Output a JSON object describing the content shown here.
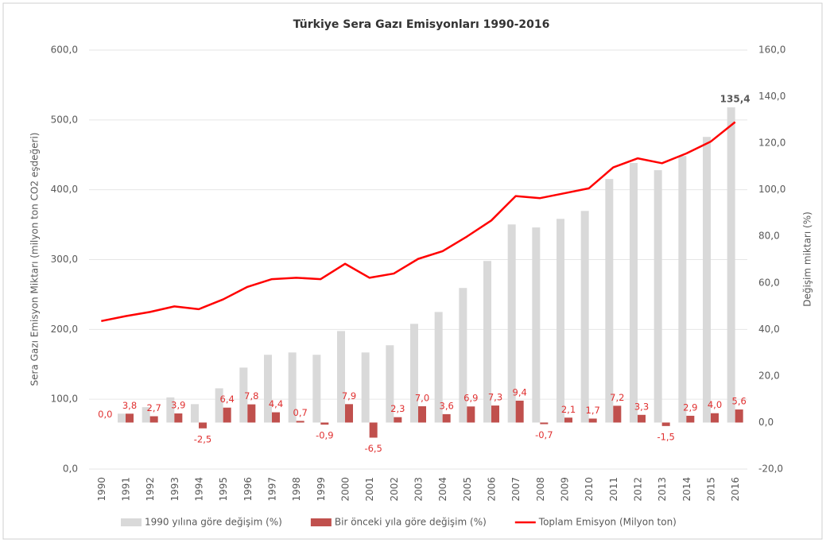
{
  "chart_data": {
    "type": "bar",
    "title": "Türkiye Sera Gazı Emisyonları 1990-2016",
    "y_label": "Sera Gazı Emisyon Miktarı (milyon ton CO2 eşdeğeri)",
    "y2_label": "Değişim miktarı (%)",
    "categories": [
      "1990",
      "1991",
      "1992",
      "1993",
      "1994",
      "1995",
      "1996",
      "1997",
      "1998",
      "1999",
      "2000",
      "2001",
      "2002",
      "2003",
      "2004",
      "2005",
      "2006",
      "2007",
      "2008",
      "2009",
      "2010",
      "2011",
      "2012",
      "2013",
      "2014",
      "2015",
      "2016"
    ],
    "ylim": [
      0,
      600
    ],
    "yticks": [
      {
        "value": 0,
        "label": "0,0"
      },
      {
        "value": 100,
        "label": "100,0"
      },
      {
        "value": 200,
        "label": "200,0"
      },
      {
        "value": 300,
        "label": "300,0"
      },
      {
        "value": 400,
        "label": "400,0"
      },
      {
        "value": 500,
        "label": "500,0"
      },
      {
        "value": 600,
        "label": "600,0"
      }
    ],
    "y2lim": [
      -20,
      160
    ],
    "y2ticks": [
      {
        "value": -20,
        "label": "-20,0"
      },
      {
        "value": 0,
        "label": "0,0"
      },
      {
        "value": 20,
        "label": "20,0"
      },
      {
        "value": 40,
        "label": "40,0"
      },
      {
        "value": 60,
        "label": "60,0"
      },
      {
        "value": 80,
        "label": "80,0"
      },
      {
        "value": 100,
        "label": "100,0"
      },
      {
        "value": 120,
        "label": "120,0"
      },
      {
        "value": 140,
        "label": "140,0"
      },
      {
        "value": 160,
        "label": "160,0"
      }
    ],
    "grid": true,
    "legend": "bottom",
    "series": [
      {
        "name": "1990 yılına göre değişim (%)",
        "type": "bar",
        "axis": "y2",
        "color": "#d9d9d9",
        "values": [
          0,
          3.8,
          6.6,
          10.8,
          7.9,
          14.7,
          23.6,
          29.1,
          30.1,
          29.1,
          39.3,
          30.1,
          33.2,
          42.4,
          47.5,
          57.8,
          69.4,
          85.1,
          83.8,
          87.5,
          90.9,
          104.6,
          111.5,
          108.4,
          114.5,
          122.7,
          135.4
        ],
        "value_labels": [
          null,
          null,
          null,
          null,
          null,
          null,
          null,
          null,
          null,
          null,
          null,
          null,
          null,
          null,
          null,
          null,
          null,
          null,
          null,
          null,
          null,
          null,
          null,
          null,
          null,
          null,
          "135,4"
        ]
      },
      {
        "name": "Bir önceki yıla göre değişim (%)",
        "type": "bar",
        "axis": "y2",
        "color": "#c0504d",
        "values": [
          0,
          3.8,
          2.7,
          3.9,
          -2.5,
          6.4,
          7.8,
          4.4,
          0.7,
          -0.9,
          7.9,
          -6.5,
          2.3,
          7.0,
          3.6,
          6.9,
          7.3,
          9.4,
          -0.7,
          2.1,
          1.7,
          7.2,
          3.3,
          -1.5,
          2.9,
          4.0,
          5.6
        ],
        "value_labels": [
          "0,0",
          "3,8",
          "2,7",
          "3,9",
          "-2,5",
          "6,4",
          "7,8",
          "4,4",
          "0,7",
          "-0,9",
          "7,9",
          "-6,5",
          "2,3",
          "7,0",
          "3,6",
          "6,9",
          "7,3",
          "9,4",
          "-0,7",
          "2,1",
          "1,7",
          "7,2",
          "3,3",
          "-1,5",
          "2,9",
          "4,0",
          "5,6"
        ]
      },
      {
        "name": "Toplam Emisyon (Milyon ton)",
        "type": "line",
        "axis": "y",
        "color": "#ff0000",
        "values": [
          212,
          219,
          225,
          233,
          229,
          243,
          261,
          272,
          274,
          272,
          294,
          274,
          280,
          301,
          312,
          333,
          356,
          391,
          388,
          395,
          402,
          432,
          445,
          438,
          452,
          469,
          497
        ]
      }
    ]
  }
}
